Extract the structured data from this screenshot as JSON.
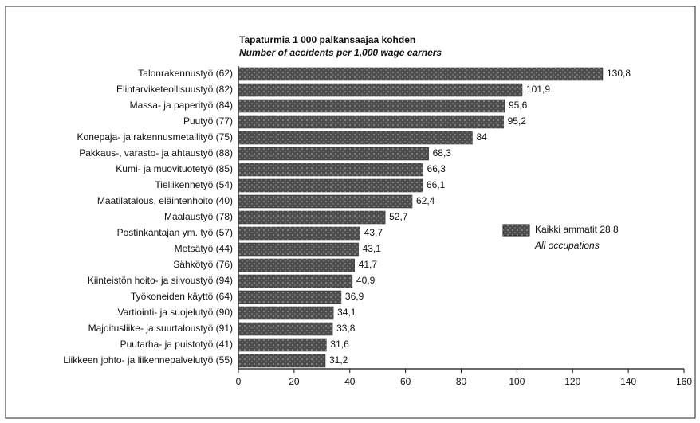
{
  "chart_data": {
    "type": "bar",
    "orientation": "horizontal",
    "title": "Tapaturmia 1 000 palkansaajaa kohden",
    "subtitle": "Number of accidents per 1,000 wage earners",
    "categories": [
      "Talonrakennustyö (62)",
      "Elintarviketeollisuustyö (82)",
      "Massa- ja paperityö (84)",
      "Puutyö (77)",
      "Konepaja- ja rakennusmetallityö (75)",
      "Pakkaus-, varasto- ja ahtaustyö (88)",
      "Kumi- ja muovituotetyö (85)",
      "Tieliikennetyö (54)",
      "Maatilatalous, eläintenhoito (40)",
      "Maalaustyö (78)",
      "Postinkantajan ym. työ (57)",
      "Metsätyö (44)",
      "Sähkötyö (76)",
      "Kiinteistön hoito- ja siivoustyö (94)",
      "Työkoneiden käyttö (64)",
      "Vartiointi- ja suojelutyö (90)",
      "Majoitusliike- ja suurtaloustyö (91)",
      "Puutarha- ja puistotyö (41)",
      "Liikkeen johto- ja liikennepalvelutyö (55)"
    ],
    "values": [
      130.8,
      101.9,
      95.6,
      95.2,
      84,
      68.3,
      66.3,
      66.1,
      62.4,
      52.7,
      43.7,
      43.1,
      41.7,
      40.9,
      36.9,
      34.1,
      33.8,
      31.6,
      31.2
    ],
    "value_labels": [
      "130,8",
      "101,9",
      "95,6",
      "95,2",
      "84",
      "68,3",
      "66,3",
      "66,1",
      "62,4",
      "52,7",
      "43,7",
      "43,1",
      "41,7",
      "40,9",
      "36,9",
      "34,1",
      "33,8",
      "31,6",
      "31,2"
    ],
    "color": "#4d4d4d",
    "xlim": [
      0,
      160
    ],
    "xticks": [
      0,
      20,
      40,
      60,
      80,
      100,
      120,
      140,
      160
    ],
    "legend": {
      "label": "Kaikki ammatit 28,8",
      "sublabel": "All occupations"
    }
  }
}
